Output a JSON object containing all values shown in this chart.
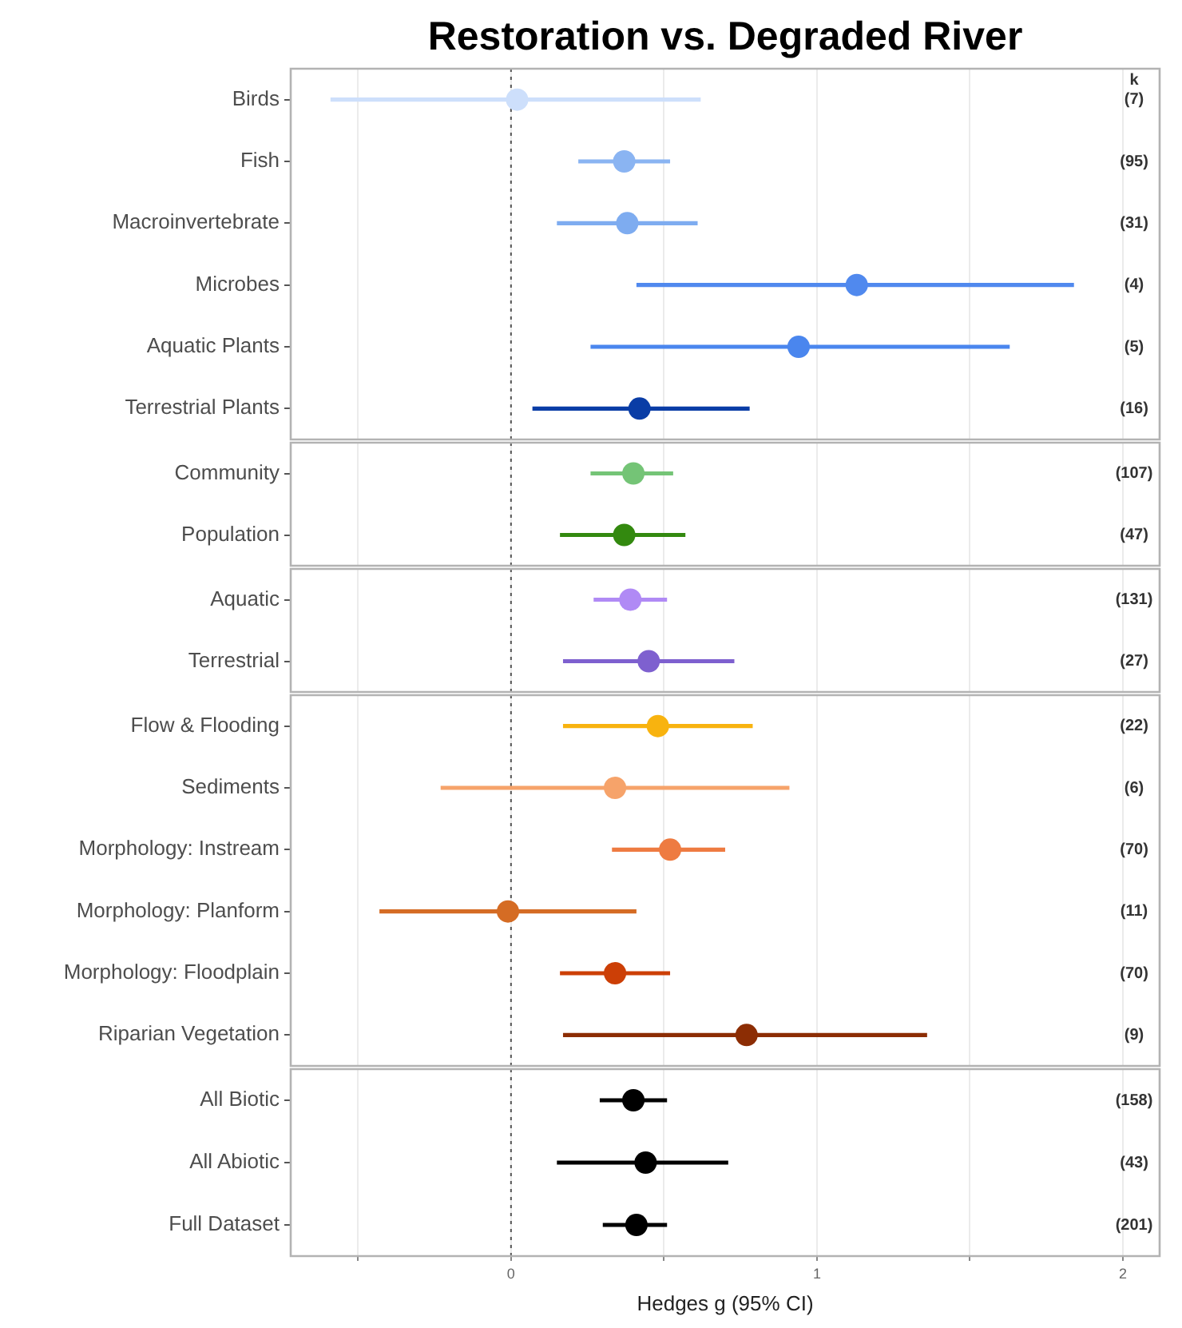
{
  "chart_data": [
    {
      "type": "scatter",
      "title": "Restoration vs. Degraded River",
      "orientation": "horizontal",
      "categories": [
        "Birds",
        "Fish",
        "Macroinvertebrate",
        "Microbes",
        "Aquatic Plants",
        "Terrestrial Plants"
      ],
      "values": [
        0.02,
        0.37,
        0.38,
        1.13,
        0.94,
        0.42
      ],
      "errors": [
        [
          -0.59,
          0.62
        ],
        [
          0.22,
          0.52
        ],
        [
          0.15,
          0.61
        ],
        [
          0.41,
          1.84
        ],
        [
          0.26,
          1.63
        ],
        [
          0.07,
          0.78
        ]
      ],
      "colors": [
        "#cddffb",
        "#8ab4f2",
        "#7eacf0",
        "#5089ee",
        "#4a86ee",
        "#0a3da6"
      ],
      "xlim": [
        -0.72,
        2.12
      ],
      "xticks": [
        {
          "value": -0.5,
          "label": null
        },
        0,
        {
          "value": 0.5,
          "label": null
        },
        1,
        {
          "value": 1.5,
          "label": null
        },
        2
      ],
      "grid": "x",
      "tick_labels": "y",
      "marker": "circle",
      "ref_lines": [
        {
          "axis": "x",
          "value": 0,
          "line_style": "dotted",
          "color": "#555555"
        }
      ],
      "annotations": [
        "k",
        "(7)",
        "(95)",
        "(31)",
        "(4)",
        "(5)",
        "(16)"
      ]
    },
    {
      "type": "scatter",
      "orientation": "horizontal",
      "categories": [
        "Community",
        "Population"
      ],
      "values": [
        0.4,
        0.37
      ],
      "errors": [
        [
          0.26,
          0.53
        ],
        [
          0.16,
          0.57
        ]
      ],
      "colors": [
        "#74c476",
        "#33890f"
      ],
      "xlim": [
        -0.72,
        2.12
      ],
      "xticks": [
        {
          "value": -0.5,
          "label": null
        },
        0,
        {
          "value": 0.5,
          "label": null
        },
        1,
        {
          "value": 1.5,
          "label": null
        },
        2
      ],
      "grid": "x",
      "tick_labels": "y",
      "marker": "circle",
      "ref_lines": [
        {
          "axis": "x",
          "value": 0,
          "line_style": "dotted",
          "color": "#555555"
        }
      ],
      "annotations": [
        "(107)",
        "(47)"
      ]
    },
    {
      "type": "scatter",
      "orientation": "horizontal",
      "categories": [
        "Aquatic",
        "Terrestrial"
      ],
      "values": [
        0.39,
        0.45
      ],
      "errors": [
        [
          0.27,
          0.51
        ],
        [
          0.17,
          0.73
        ]
      ],
      "colors": [
        "#b08af5",
        "#7e60cf"
      ],
      "xlim": [
        -0.72,
        2.12
      ],
      "xticks": [
        {
          "value": -0.5,
          "label": null
        },
        0,
        {
          "value": 0.5,
          "label": null
        },
        1,
        {
          "value": 1.5,
          "label": null
        },
        2
      ],
      "grid": "x",
      "tick_labels": "y",
      "marker": "circle",
      "ref_lines": [
        {
          "axis": "x",
          "value": 0,
          "line_style": "dotted",
          "color": "#555555"
        }
      ],
      "annotations": [
        "(131)",
        "(27)"
      ]
    },
    {
      "type": "scatter",
      "orientation": "horizontal",
      "categories": [
        "Flow & Flooding",
        "Sediments",
        "Morphology: Instream",
        "Morphology: Planform",
        "Morphology: Floodplain",
        "Riparian Vegetation"
      ],
      "values": [
        0.48,
        0.34,
        0.52,
        -0.01,
        0.34,
        0.77
      ],
      "errors": [
        [
          0.17,
          0.79
        ],
        [
          -0.23,
          0.91
        ],
        [
          0.33,
          0.7
        ],
        [
          -0.43,
          0.41
        ],
        [
          0.16,
          0.52
        ],
        [
          0.17,
          1.36
        ]
      ],
      "colors": [
        "#f8b30f",
        "#f6a36a",
        "#ee7b41",
        "#d56c24",
        "#cc3f06",
        "#8c2d04"
      ],
      "xlim": [
        -0.72,
        2.12
      ],
      "xticks": [
        {
          "value": -0.5,
          "label": null
        },
        0,
        {
          "value": 0.5,
          "label": null
        },
        1,
        {
          "value": 1.5,
          "label": null
        },
        2
      ],
      "grid": "x",
      "tick_labels": "y",
      "marker": "circle",
      "ref_lines": [
        {
          "axis": "x",
          "value": 0,
          "line_style": "dotted",
          "color": "#555555"
        }
      ],
      "annotations": [
        "(22)",
        "(6)",
        "(70)",
        "(11)",
        "(70)",
        "(9)"
      ]
    },
    {
      "type": "scatter",
      "orientation": "horizontal",
      "xlabel": "Hedges g (95% CI)",
      "categories": [
        "All Biotic",
        "All Abiotic",
        "Full Dataset"
      ],
      "values": [
        0.4,
        0.44,
        0.41
      ],
      "errors": [
        [
          0.29,
          0.51
        ],
        [
          0.15,
          0.71
        ],
        [
          0.3,
          0.51
        ]
      ],
      "colors": [
        "#000000",
        "#000000",
        "#000000"
      ],
      "xlim": [
        -0.72,
        2.12
      ],
      "xticks": [
        {
          "value": -0.5,
          "label": null
        },
        0,
        {
          "value": 0.5,
          "label": null
        },
        1,
        {
          "value": 1.5,
          "label": null
        },
        2
      ],
      "grid": "x",
      "marker": "circle",
      "ref_lines": [
        {
          "axis": "x",
          "value": 0,
          "line_style": "dotted",
          "color": "#555555"
        }
      ],
      "annotations": [
        "(158)",
        "(43)",
        "(201)"
      ]
    }
  ]
}
